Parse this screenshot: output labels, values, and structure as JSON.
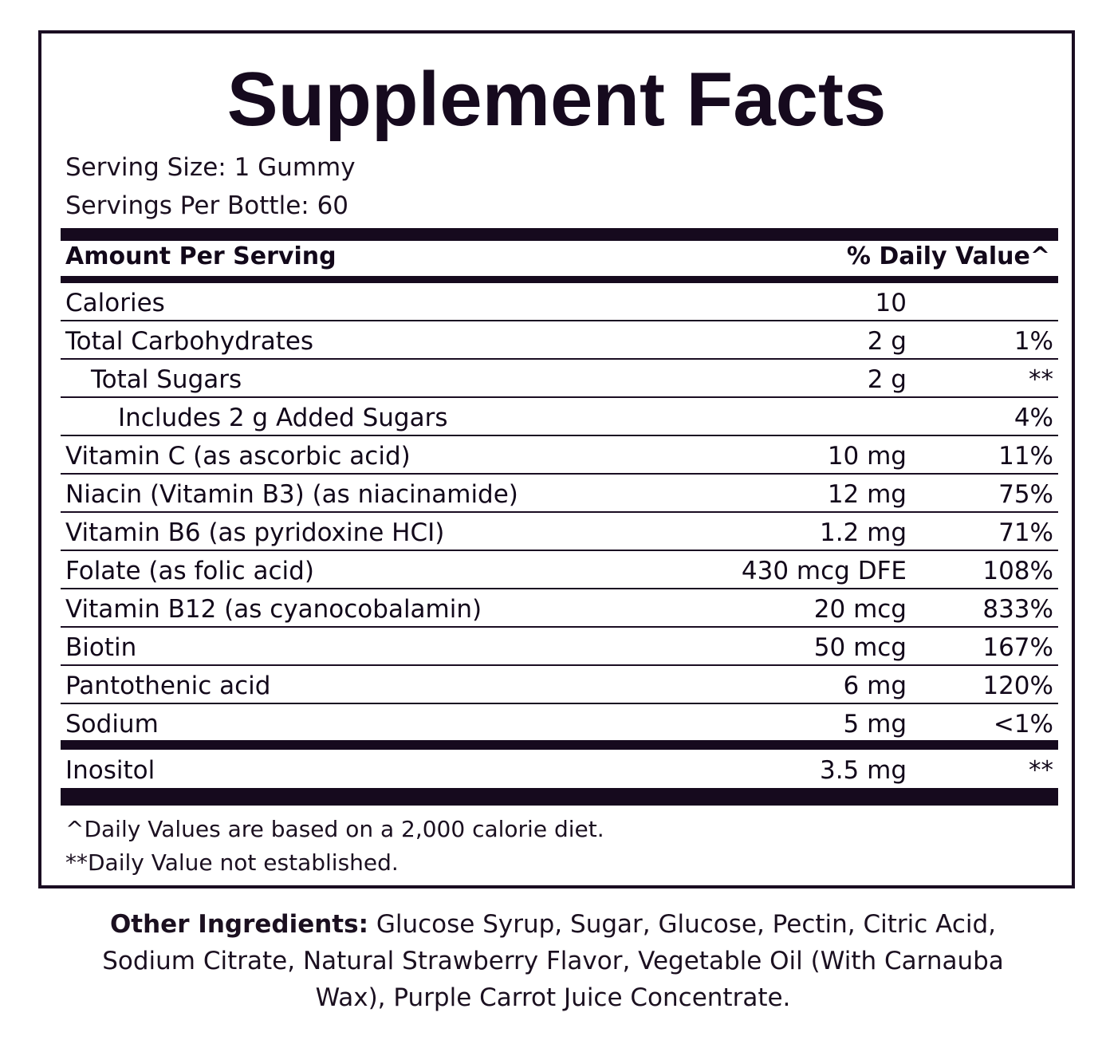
{
  "title": "Supplement Facts",
  "serving_size": "Serving Size: 1 Gummy",
  "servings_per": "Servings Per Bottle: 60",
  "header": {
    "amount": "Amount Per Serving",
    "daily_value": "% Daily Value^"
  },
  "rows": [
    {
      "name": "Calories",
      "amount": "10",
      "dv": ""
    },
    {
      "name": "Total Carbohydrates",
      "amount": "2 g",
      "dv": "1%"
    },
    {
      "name": "Total Sugars",
      "amount": "2 g",
      "dv": "**"
    },
    {
      "name": "Includes 2 g Added Sugars",
      "amount": "",
      "dv": "4%"
    },
    {
      "name": "Vitamin C (as ascorbic acid)",
      "amount": "10 mg",
      "dv": "11%"
    },
    {
      "name": "Niacin (Vitamin B3) (as niacinamide)",
      "amount": "12 mg",
      "dv": "75%"
    },
    {
      "name": "Vitamin B6 (as pyridoxine HCI)",
      "amount": "1.2 mg",
      "dv": "71%"
    },
    {
      "name": "Folate (as folic acid)",
      "amount": "430 mcg DFE",
      "dv": "108%"
    },
    {
      "name": "Vitamin B12 (as cyanocobalamin)",
      "amount": "20 mcg",
      "dv": "833%"
    },
    {
      "name": "Biotin",
      "amount": "50 mcg",
      "dv": "167%"
    },
    {
      "name": "Pantothenic acid",
      "amount": "6 mg",
      "dv": "120%"
    },
    {
      "name": "Sodium",
      "amount": "5 mg",
      "dv": "<1%"
    },
    {
      "name": "Inositol",
      "amount": "3.5 mg",
      "dv": "**"
    }
  ],
  "footnotes": {
    "daily_values": "^Daily Values are based on a 2,000 calorie diet.",
    "not_established": "**Daily Value not established."
  },
  "other_ingredients": {
    "label": "Other Ingredients:",
    "text": " Glucose Syrup, Sugar, Glucose, Pectin, Citric Acid, Sodium Citrate, Natural Strawberry Flavor, Vegetable Oil (With Carnauba Wax), Purple Carrot Juice Concentrate."
  }
}
